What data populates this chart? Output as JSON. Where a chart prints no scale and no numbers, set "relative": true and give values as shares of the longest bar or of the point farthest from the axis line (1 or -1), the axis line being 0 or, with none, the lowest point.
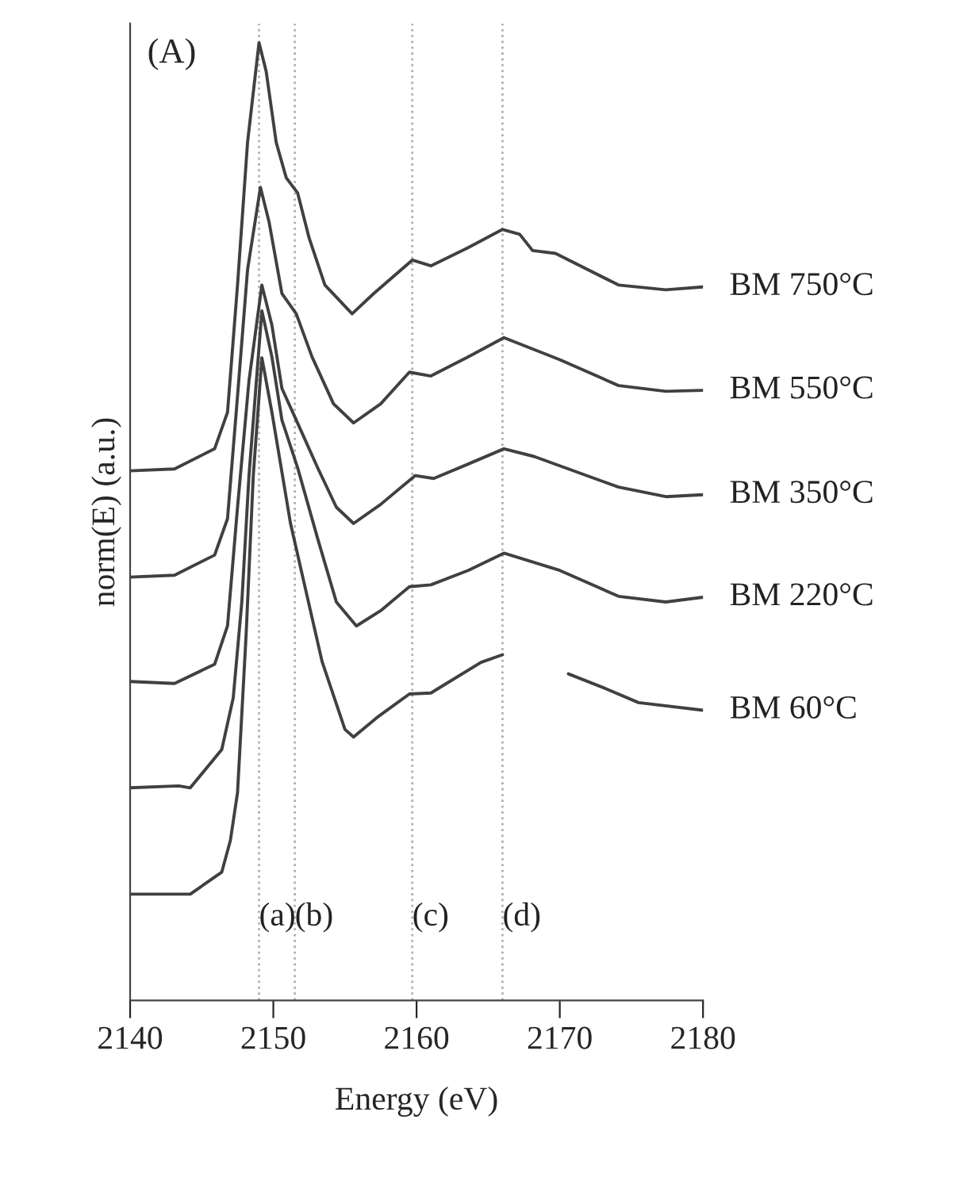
{
  "chart_data": {
    "type": "line",
    "relative": true,
    "xlabel": "Energy (eV)",
    "ylabel": "norm(E) (a.u.)",
    "xlim": [
      2140,
      2180
    ],
    "xticks": [
      2140,
      2150,
      2160,
      2170,
      2180
    ],
    "grid": false,
    "legend": false,
    "marker": "none",
    "line_style": "solid",
    "annotations": [
      "(A)"
    ],
    "ref_lines": [
      {
        "axis": "x",
        "value": 2149.0,
        "label": "(a)",
        "color": "#b0b0b0",
        "line_style": "dotted"
      },
      {
        "axis": "x",
        "value": 2151.5,
        "label": "(b)",
        "color": "#b0b0b0",
        "line_style": "dotted"
      },
      {
        "axis": "x",
        "value": 2159.7,
        "label": "(c)",
        "color": "#b0b0b0",
        "line_style": "dotted"
      },
      {
        "axis": "x",
        "value": 2166.0,
        "label": "(d)",
        "color": "#b0b0b0",
        "line_style": "dotted"
      }
    ],
    "series": [
      {
        "name": "BM 750°C",
        "color": "#404040",
        "x": [
          2140.0,
          2143.1,
          2145.9,
          2146.8,
          2147.5,
          2148.2,
          2149.0,
          2149.5,
          2150.2,
          2150.9,
          2151.7,
          2152.5,
          2153.6,
          2155.5,
          2157.0,
          2159.7,
          2161.0,
          2163.6,
          2166.0,
          2167.2,
          2168.1,
          2169.7,
          2174.1,
          2177.4,
          2180.0
        ],
        "values": [
          0.553,
          0.555,
          0.576,
          0.614,
          0.747,
          0.896,
          1.0,
          0.97,
          0.896,
          0.859,
          0.843,
          0.796,
          0.747,
          0.717,
          0.738,
          0.773,
          0.767,
          0.786,
          0.805,
          0.8,
          0.783,
          0.78,
          0.747,
          0.742,
          0.745
        ]
      },
      {
        "name": "BM 550°C",
        "color": "#404040",
        "x": [
          2140.0,
          2143.1,
          2145.9,
          2146.8,
          2147.5,
          2148.2,
          2149.1,
          2149.7,
          2150.6,
          2151.6,
          2152.7,
          2154.2,
          2155.6,
          2157.5,
          2159.5,
          2161.0,
          2163.6,
          2166.1,
          2170.0,
          2174.1,
          2177.4,
          2180.0
        ],
        "values": [
          0.442,
          0.444,
          0.465,
          0.503,
          0.631,
          0.763,
          0.849,
          0.813,
          0.738,
          0.717,
          0.672,
          0.623,
          0.603,
          0.623,
          0.656,
          0.652,
          0.672,
          0.692,
          0.669,
          0.642,
          0.636,
          0.637
        ]
      },
      {
        "name": "BM 350°C",
        "color": "#404040",
        "x": [
          2140.0,
          2143.1,
          2145.9,
          2146.8,
          2147.5,
          2148.3,
          2149.2,
          2149.9,
          2150.6,
          2151.6,
          2153.1,
          2154.4,
          2155.6,
          2157.5,
          2159.9,
          2161.2,
          2163.6,
          2166.1,
          2168.2,
          2174.1,
          2177.4,
          2180.0
        ],
        "values": [
          0.333,
          0.331,
          0.351,
          0.391,
          0.515,
          0.647,
          0.747,
          0.705,
          0.639,
          0.606,
          0.556,
          0.515,
          0.498,
          0.518,
          0.548,
          0.545,
          0.56,
          0.576,
          0.568,
          0.536,
          0.526,
          0.528
        ]
      },
      {
        "name": "BM 220°C",
        "color": "#404040",
        "x": [
          2140.0,
          2143.4,
          2144.2,
          2146.4,
          2147.2,
          2147.8,
          2148.3,
          2149.2,
          2149.9,
          2150.6,
          2151.7,
          2153.1,
          2154.4,
          2155.8,
          2157.5,
          2159.5,
          2161.0,
          2163.6,
          2166.1,
          2170.0,
          2174.1,
          2177.4,
          2180.0
        ],
        "values": [
          0.222,
          0.224,
          0.222,
          0.262,
          0.316,
          0.416,
          0.548,
          0.72,
          0.672,
          0.606,
          0.556,
          0.482,
          0.416,
          0.391,
          0.407,
          0.432,
          0.434,
          0.449,
          0.467,
          0.449,
          0.422,
          0.416,
          0.421
        ]
      },
      {
        "name": "BM 60°C",
        "color": "#404040",
        "x": [
          2140.0,
          2144.2,
          2146.4,
          2147.0,
          2147.5,
          2148.1,
          2148.6,
          2149.2,
          2149.9,
          2151.2,
          2153.4,
          2155.0,
          2155.6,
          2157.2,
          2159.5,
          2161.0,
          2164.5,
          2166.0,
          2168.0,
          2170.6,
          2173.3,
          2175.5,
          2180.0
        ],
        "values": [
          0.111,
          0.111,
          0.134,
          0.167,
          0.217,
          0.382,
          0.548,
          0.671,
          0.614,
          0.498,
          0.354,
          0.283,
          0.275,
          0.295,
          0.32,
          0.321,
          0.353,
          0.361,
          null,
          0.341,
          0.325,
          0.311,
          0.303
        ]
      }
    ]
  }
}
